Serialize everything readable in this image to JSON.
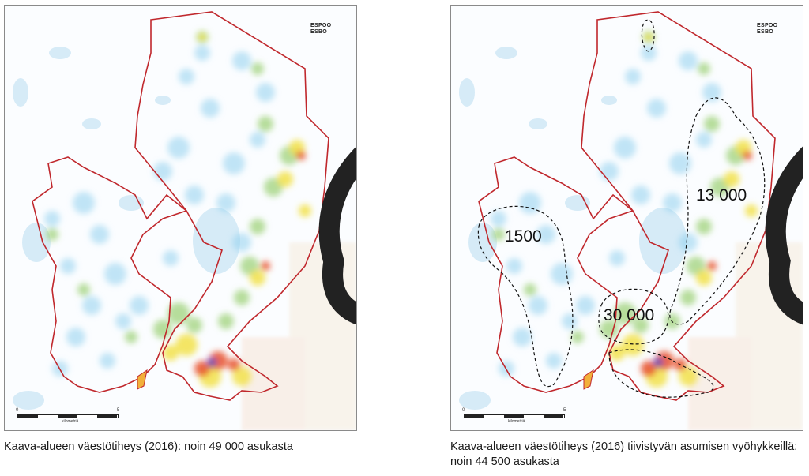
{
  "maps": [
    {
      "caption": "Kaava-alueen väestötiheys (2016): noin 49 000 asukasta",
      "logo_text": [
        "ESPOO",
        "ESBO"
      ],
      "scale": {
        "zero": "0",
        "five": "5",
        "unit": "kilometriä"
      },
      "zone_labels": []
    },
    {
      "caption": "Kaava-alueen väestötiheys (2016) tiivistyvän asumisen vyöhykkeillä: noin 44 500 asukasta",
      "logo_text": [
        "ESPOO",
        "ESBO"
      ],
      "scale": {
        "zero": "0",
        "five": "5",
        "unit": "kilometriä"
      },
      "zone_labels": [
        "1500",
        "30 000",
        "13 000"
      ]
    }
  ],
  "colors": {
    "boundary": "#c0282d",
    "water": "#cfe6f5",
    "low_density": "#8fd0ee",
    "mid_density": "#9fd27a",
    "high_density": "#f2e24a",
    "very_high_density": "#e8502b",
    "peak_density": "#5a4fb8"
  }
}
